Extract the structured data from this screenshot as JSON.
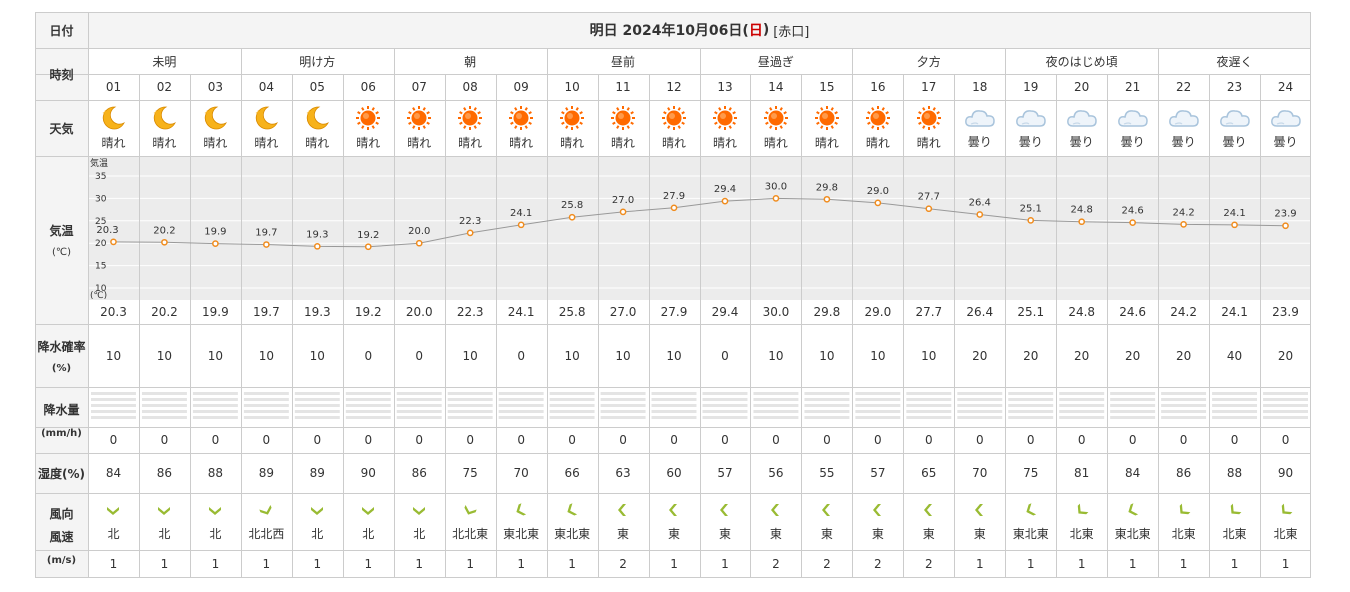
{
  "header": {
    "col_label": "日付",
    "title_prefix": "明日 2024年10月06日(",
    "title_day": "日",
    "title_suffix": ")",
    "location": "[赤口]",
    "day_color": "#cc0000"
  },
  "row_labels": {
    "time": "時刻",
    "weather": "天気",
    "temp_main": "気温",
    "temp_unit": "(℃)",
    "precip_prob": "降水確率",
    "precip_prob_unit": "(%)",
    "precip_amount": "降水量",
    "precip_amount_unit": "(mm/h)",
    "humidity": "湿度(%)",
    "wind_dir": "風向",
    "wind_speed": "風速",
    "wind_unit": "(m/s)"
  },
  "periods": [
    "未明",
    "明け方",
    "朝",
    "昼前",
    "昼過ぎ",
    "夕方",
    "夜のはじめ頃",
    "夜遅く"
  ],
  "hours": [
    "01",
    "02",
    "03",
    "04",
    "05",
    "06",
    "07",
    "08",
    "09",
    "10",
    "11",
    "12",
    "13",
    "14",
    "15",
    "16",
    "17",
    "18",
    "19",
    "20",
    "21",
    "22",
    "23",
    "24"
  ],
  "weather": {
    "icons": [
      "moon",
      "moon",
      "moon",
      "moon",
      "moon",
      "sun",
      "sun",
      "sun",
      "sun",
      "sun",
      "sun",
      "sun",
      "sun",
      "sun",
      "sun",
      "sun",
      "sun",
      "cloud",
      "cloud",
      "cloud",
      "cloud",
      "cloud",
      "cloud",
      "cloud"
    ],
    "labels": [
      "晴れ",
      "晴れ",
      "晴れ",
      "晴れ",
      "晴れ",
      "晴れ",
      "晴れ",
      "晴れ",
      "晴れ",
      "晴れ",
      "晴れ",
      "晴れ",
      "晴れ",
      "晴れ",
      "晴れ",
      "晴れ",
      "晴れ",
      "曇り",
      "曇り",
      "曇り",
      "曇り",
      "曇り",
      "曇り",
      "曇り"
    ]
  },
  "chart_data": {
    "type": "line",
    "title": "",
    "ylabel": "気温",
    "yunit": "(℃)",
    "ylim": [
      5,
      40
    ],
    "yticks": [
      "35",
      "30",
      "25",
      "20",
      "15",
      "10"
    ],
    "x": [
      "01",
      "02",
      "03",
      "04",
      "05",
      "06",
      "07",
      "08",
      "09",
      "10",
      "11",
      "12",
      "13",
      "14",
      "15",
      "16",
      "17",
      "18",
      "19",
      "20",
      "21",
      "22",
      "23",
      "24"
    ],
    "values": [
      20.3,
      20.2,
      19.9,
      19.7,
      19.3,
      19.2,
      20.0,
      22.3,
      24.1,
      25.8,
      27.0,
      27.9,
      29.4,
      30.0,
      29.8,
      29.0,
      27.7,
      26.4,
      25.1,
      24.8,
      24.6,
      24.2,
      24.1,
      23.9
    ],
    "labels": [
      "20.3",
      "20.2",
      "19.9",
      "19.7",
      "19.3",
      "19.2",
      "20.0",
      "22.3",
      "24.1",
      "25.8",
      "27.0",
      "27.9",
      "29.4",
      "30.0",
      "29.8",
      "29.0",
      "27.7",
      "26.4",
      "25.1",
      "24.8",
      "24.6",
      "24.2",
      "24.1",
      "23.9"
    ],
    "grid": true,
    "line_color": "#999999",
    "marker_color": "#f08c1e"
  },
  "temperature": [
    "20.3",
    "20.2",
    "19.9",
    "19.7",
    "19.3",
    "19.2",
    "20.0",
    "22.3",
    "24.1",
    "25.8",
    "27.0",
    "27.9",
    "29.4",
    "30.0",
    "29.8",
    "29.0",
    "27.7",
    "26.4",
    "25.1",
    "24.8",
    "24.6",
    "24.2",
    "24.1",
    "23.9"
  ],
  "precip_prob": [
    "10",
    "10",
    "10",
    "10",
    "10",
    "0",
    "0",
    "10",
    "0",
    "10",
    "10",
    "10",
    "0",
    "10",
    "10",
    "10",
    "10",
    "20",
    "20",
    "20",
    "20",
    "20",
    "40",
    "20"
  ],
  "precip_amount": [
    "0",
    "0",
    "0",
    "0",
    "0",
    "0",
    "0",
    "0",
    "0",
    "0",
    "0",
    "0",
    "0",
    "0",
    "0",
    "0",
    "0",
    "0",
    "0",
    "0",
    "0",
    "0",
    "0",
    "0"
  ],
  "humidity": [
    "84",
    "86",
    "88",
    "89",
    "89",
    "90",
    "86",
    "75",
    "70",
    "66",
    "63",
    "60",
    "57",
    "56",
    "55",
    "57",
    "65",
    "70",
    "75",
    "81",
    "84",
    "86",
    "88",
    "90"
  ],
  "wind_dir": [
    "北",
    "北",
    "北",
    "北北西",
    "北",
    "北",
    "北",
    "北北東",
    "東北東",
    "東北東",
    "東",
    "東",
    "東",
    "東",
    "東",
    "東",
    "東",
    "東",
    "東北東",
    "北東",
    "東北東",
    "北東",
    "北東",
    "北東"
  ],
  "wind_speed": [
    "1",
    "1",
    "1",
    "1",
    "1",
    "1",
    "1",
    "1",
    "1",
    "1",
    "2",
    "1",
    "1",
    "2",
    "2",
    "2",
    "2",
    "1",
    "1",
    "1",
    "1",
    "1",
    "1",
    "1"
  ],
  "colors": {
    "border": "#cccccc",
    "label_bg": "#f4f4f4",
    "chart_bg": "#ececec",
    "wind_arrow": "#99bb33",
    "sun": "#ff6a00",
    "moon": "#f7b21a",
    "cloud": "#a9c4dc"
  }
}
